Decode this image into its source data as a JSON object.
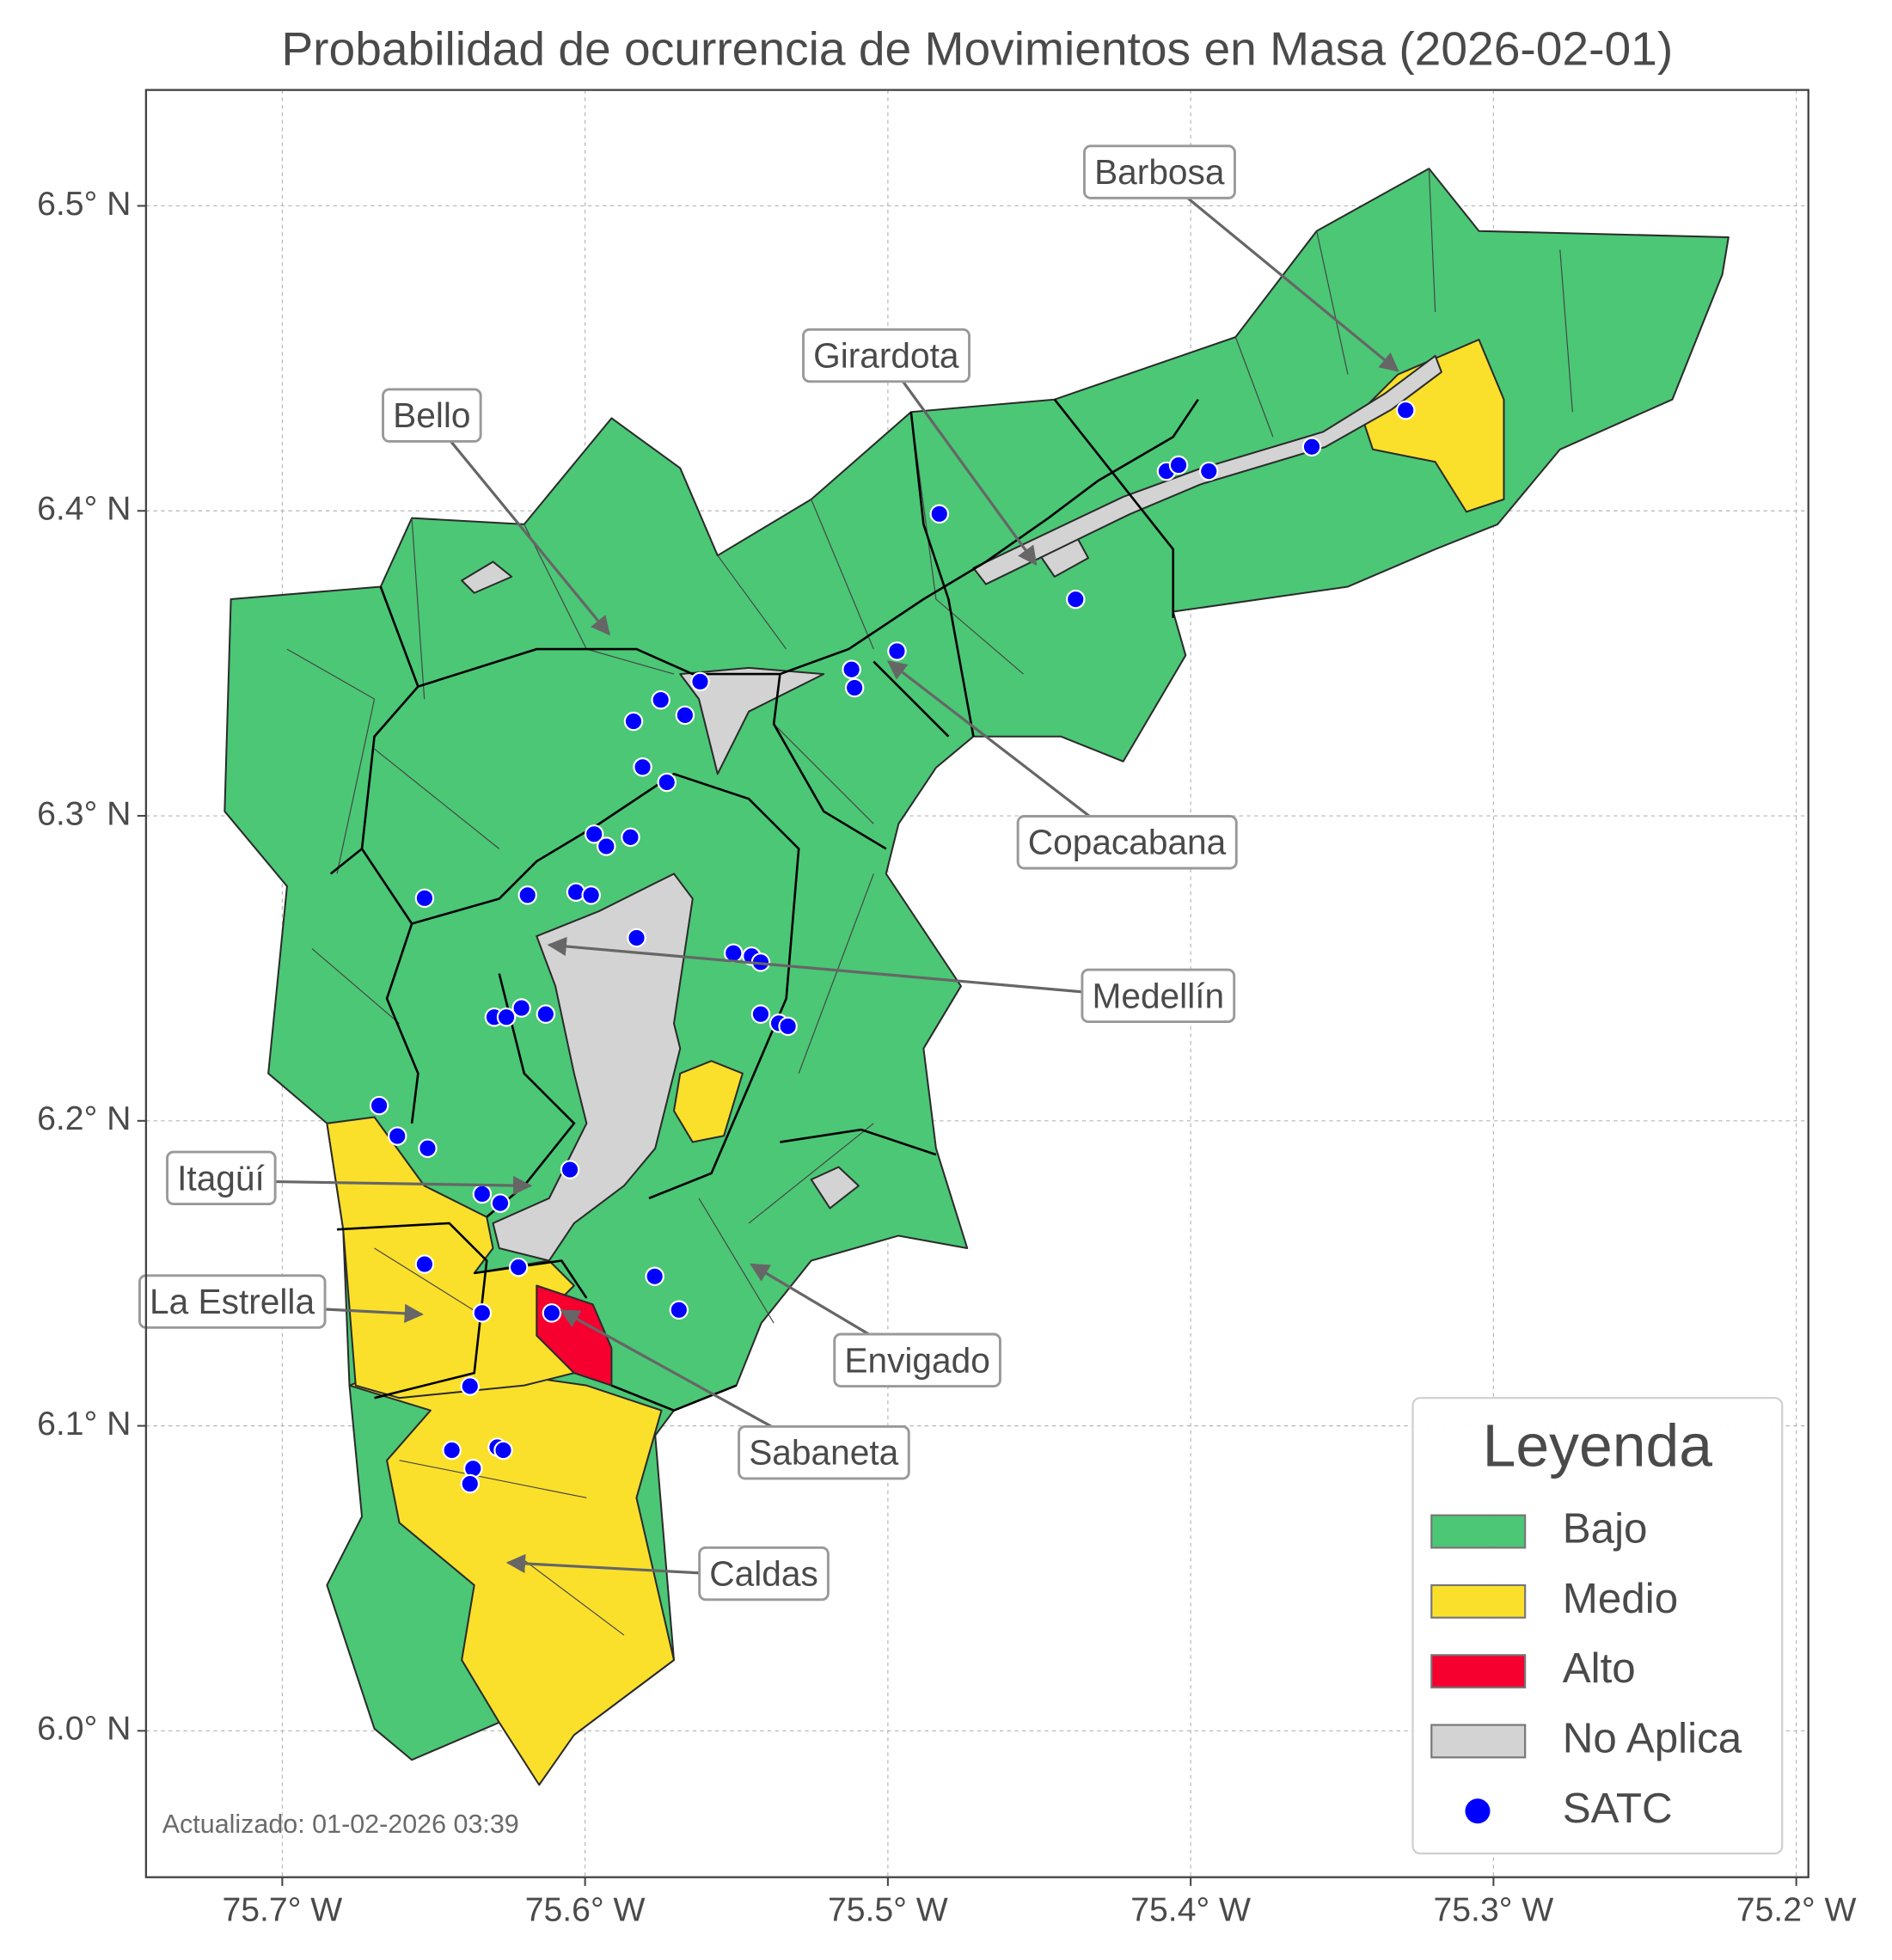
{
  "chart_data": {
    "type": "map",
    "title": "Probabilidad de ocurrencia de Movimientos en Masa (2026-02-01)",
    "xlim": [
      -75.745,
      -75.196
    ],
    "ylim": [
      5.952,
      6.538
    ],
    "xticks": [
      {
        "value": -75.7,
        "label": "75.7° W"
      },
      {
        "value": -75.6,
        "label": "75.6° W"
      },
      {
        "value": -75.5,
        "label": "75.5° W"
      },
      {
        "value": -75.4,
        "label": "75.4° W"
      },
      {
        "value": -75.3,
        "label": "75.3° W"
      },
      {
        "value": -75.2,
        "label": "75.2° W"
      }
    ],
    "yticks": [
      {
        "value": 6.0,
        "label": "6.0° N"
      },
      {
        "value": 6.1,
        "label": "6.1° N"
      },
      {
        "value": 6.2,
        "label": "6.2° N"
      },
      {
        "value": 6.3,
        "label": "6.3° N"
      },
      {
        "value": 6.4,
        "label": "6.4° N"
      },
      {
        "value": 6.5,
        "label": "6.5° N"
      }
    ],
    "grid": true,
    "classes": [
      {
        "name": "Bajo",
        "color": "#4bc776"
      },
      {
        "name": "Medio",
        "color": "#fbe02b"
      },
      {
        "name": "Alto",
        "color": "#f5002f"
      },
      {
        "name": "No Aplica",
        "color": "#d3d3d3"
      }
    ],
    "series": [
      {
        "name": "SATC",
        "color": "#0000ff",
        "x": [
          -75.483,
          -75.408,
          -75.404,
          -75.394,
          -75.36,
          -75.329,
          -75.438,
          -75.497,
          -75.512,
          -75.511,
          -75.562,
          -75.575,
          -75.584,
          -75.567,
          -75.581,
          -75.573,
          -75.597,
          -75.585,
          -75.593,
          -75.653,
          -75.619,
          -75.603,
          -75.598,
          -75.583,
          -75.551,
          -75.545,
          -75.542,
          -75.621,
          -75.63,
          -75.626,
          -75.613,
          -75.542,
          -75.536,
          -75.533,
          -75.668,
          -75.662,
          -75.652,
          -75.605,
          -75.634,
          -75.628,
          -75.622,
          -75.653,
          -75.577,
          -75.569,
          -75.634,
          -75.611,
          -75.638,
          -75.644,
          -75.629,
          -75.627,
          -75.637,
          -75.638
        ],
        "y": [
          6.399,
          6.413,
          6.415,
          6.413,
          6.421,
          6.433,
          6.371,
          6.354,
          6.348,
          6.342,
          6.344,
          6.338,
          6.331,
          6.333,
          6.316,
          6.311,
          6.294,
          6.293,
          6.29,
          6.273,
          6.274,
          6.275,
          6.274,
          6.26,
          6.255,
          6.254,
          6.252,
          6.237,
          6.234,
          6.234,
          6.235,
          6.235,
          6.232,
          6.231,
          6.205,
          6.195,
          6.191,
          6.184,
          6.176,
          6.173,
          6.152,
          6.153,
          6.149,
          6.138,
          6.137,
          6.137,
          6.113,
          6.092,
          6.093,
          6.092,
          6.086,
          6.081
        ]
      }
    ],
    "legend": {
      "title": "Leyenda",
      "position": "lower right"
    },
    "annotations": [
      "Barbosa",
      "Girardota",
      "Bello",
      "Copacabana",
      "Medellín",
      "Itagüí",
      "La Estrella",
      "Envigado",
      "Sabaneta",
      "Caldas"
    ],
    "note": "Actualizado: 01-02-2026 03:39"
  }
}
